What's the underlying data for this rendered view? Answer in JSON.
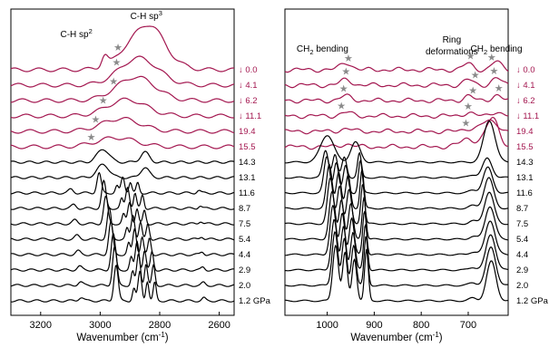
{
  "colors": {
    "decompression": "#a3164f",
    "compression": "#000000",
    "marker": "#8a8a8a"
  },
  "chart_data": [
    {
      "type": "line",
      "panel": "left",
      "xlabel_main": "Wavenumber (cm",
      "xlabel_sup": "-1",
      "xlabel_end": ")",
      "xlim": [
        3300,
        2550
      ],
      "x_ticks": [
        3200,
        3000,
        2800,
        2600
      ],
      "x_tick_labels": [
        "3200",
        "3000",
        "2800",
        "2600"
      ],
      "annotations": [
        {
          "text": "C-H sp",
          "sup": "2",
          "x": 3080,
          "row": 0,
          "rise": 36
        },
        {
          "text": "C-H sp",
          "sup": "3",
          "x": 2845,
          "row": 0,
          "rise": 56
        }
      ],
      "series": [
        {
          "name": "↓ 0.0",
          "color": "decompression",
          "stars": [
            2940
          ]
        },
        {
          "name": "↓ 4.1",
          "color": "decompression",
          "stars": [
            2945
          ]
        },
        {
          "name": "↓ 6.2",
          "color": "decompression",
          "stars": [
            2955
          ]
        },
        {
          "name": "↓ 11.1",
          "color": "decompression",
          "stars": [
            2990
          ]
        },
        {
          "name": "19.4",
          "color": "decompression",
          "stars": [
            3015
          ]
        },
        {
          "name": "15.5",
          "color": "decompression",
          "stars": [
            3030
          ]
        },
        {
          "name": "14.3",
          "color": "compression",
          "stars": []
        },
        {
          "name": "13.1",
          "color": "compression",
          "stars": []
        },
        {
          "name": "11.6",
          "color": "compression",
          "stars": []
        },
        {
          "name": "8.7",
          "color": "compression",
          "stars": []
        },
        {
          "name": "7.5",
          "color": "compression",
          "stars": []
        },
        {
          "name": "5.4",
          "color": "compression",
          "stars": []
        },
        {
          "name": "4.4",
          "color": "compression",
          "stars": []
        },
        {
          "name": "2.9",
          "color": "compression",
          "stars": []
        },
        {
          "name": "2.0",
          "color": "compression",
          "stars": []
        },
        {
          "name": "1.2 GPa",
          "color": "compression",
          "stars": []
        }
      ]
    },
    {
      "type": "line",
      "panel": "right",
      "xlabel_main": "Wavenumber (cm",
      "xlabel_sup": "-1",
      "xlabel_end": ")",
      "xlim": [
        1090,
        615
      ],
      "x_ticks": [
        1000,
        900,
        800,
        700
      ],
      "x_tick_labels": [
        "1000",
        "900",
        "800",
        "700"
      ],
      "annotations": [
        {
          "text": "CH",
          "sub": "2",
          "rest": " bending",
          "x": 1010,
          "row": 0,
          "rise": 20
        },
        {
          "text": "Ring",
          "x": 735,
          "row": 0,
          "rise": 30
        },
        {
          "text": "deformations",
          "x": 735,
          "row": 0,
          "rise": 17
        },
        {
          "text": "CH",
          "sub": "2",
          "rest": " bending",
          "x": 640,
          "row": 0,
          "rise": 20
        }
      ],
      "series": [
        {
          "name": "↓ 0.0",
          "color": "decompression",
          "stars": [
            955,
            695,
            650
          ]
        },
        {
          "name": "↓ 4.1",
          "color": "decompression",
          "stars": [
            960,
            685,
            645
          ]
        },
        {
          "name": "↓ 6.2",
          "color": "decompression",
          "stars": [
            965,
            690,
            635
          ]
        },
        {
          "name": "↓ 11.1",
          "color": "decompression",
          "stars": [
            970,
            700
          ]
        },
        {
          "name": "19.4",
          "color": "decompression",
          "stars": [
            705
          ]
        },
        {
          "name": "15.5",
          "color": "decompression",
          "stars": []
        },
        {
          "name": "14.3",
          "color": "compression",
          "stars": []
        },
        {
          "name": "13.1",
          "color": "compression",
          "stars": []
        },
        {
          "name": "11.6",
          "color": "compression",
          "stars": []
        },
        {
          "name": "8.7",
          "color": "compression",
          "stars": []
        },
        {
          "name": "7.5",
          "color": "compression",
          "stars": []
        },
        {
          "name": "5.4",
          "color": "compression",
          "stars": []
        },
        {
          "name": "4.4",
          "color": "compression",
          "stars": []
        },
        {
          "name": "2.9",
          "color": "compression",
          "stars": []
        },
        {
          "name": "2.0",
          "color": "compression",
          "stars": []
        },
        {
          "name": "1.2 GPa",
          "color": "compression",
          "stars": []
        }
      ]
    }
  ]
}
